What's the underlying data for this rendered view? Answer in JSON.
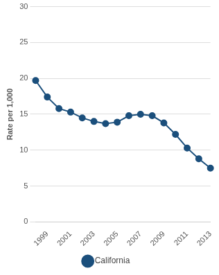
{
  "chart_data": {
    "type": "line",
    "y_label": "Rate per 1,000",
    "categories": [
      null,
      "1999",
      null,
      "2001",
      null,
      "2003",
      null,
      "2005",
      null,
      "2007",
      null,
      "2009",
      null,
      "2011",
      null,
      "2013"
    ],
    "series": [
      {
        "name": "California",
        "color": "#1b4f7c",
        "marker": "circle",
        "values": [
          19.7,
          17.4,
          15.8,
          15.3,
          14.5,
          14.0,
          13.7,
          13.9,
          14.8,
          15.0,
          14.8,
          13.8,
          12.2,
          10.3,
          8.8,
          7.5
        ]
      }
    ],
    "ylim": [
      0,
      30
    ],
    "yticks": [
      0,
      5,
      10,
      15,
      20,
      25,
      30
    ],
    "grid": true,
    "legend": "bottom"
  }
}
